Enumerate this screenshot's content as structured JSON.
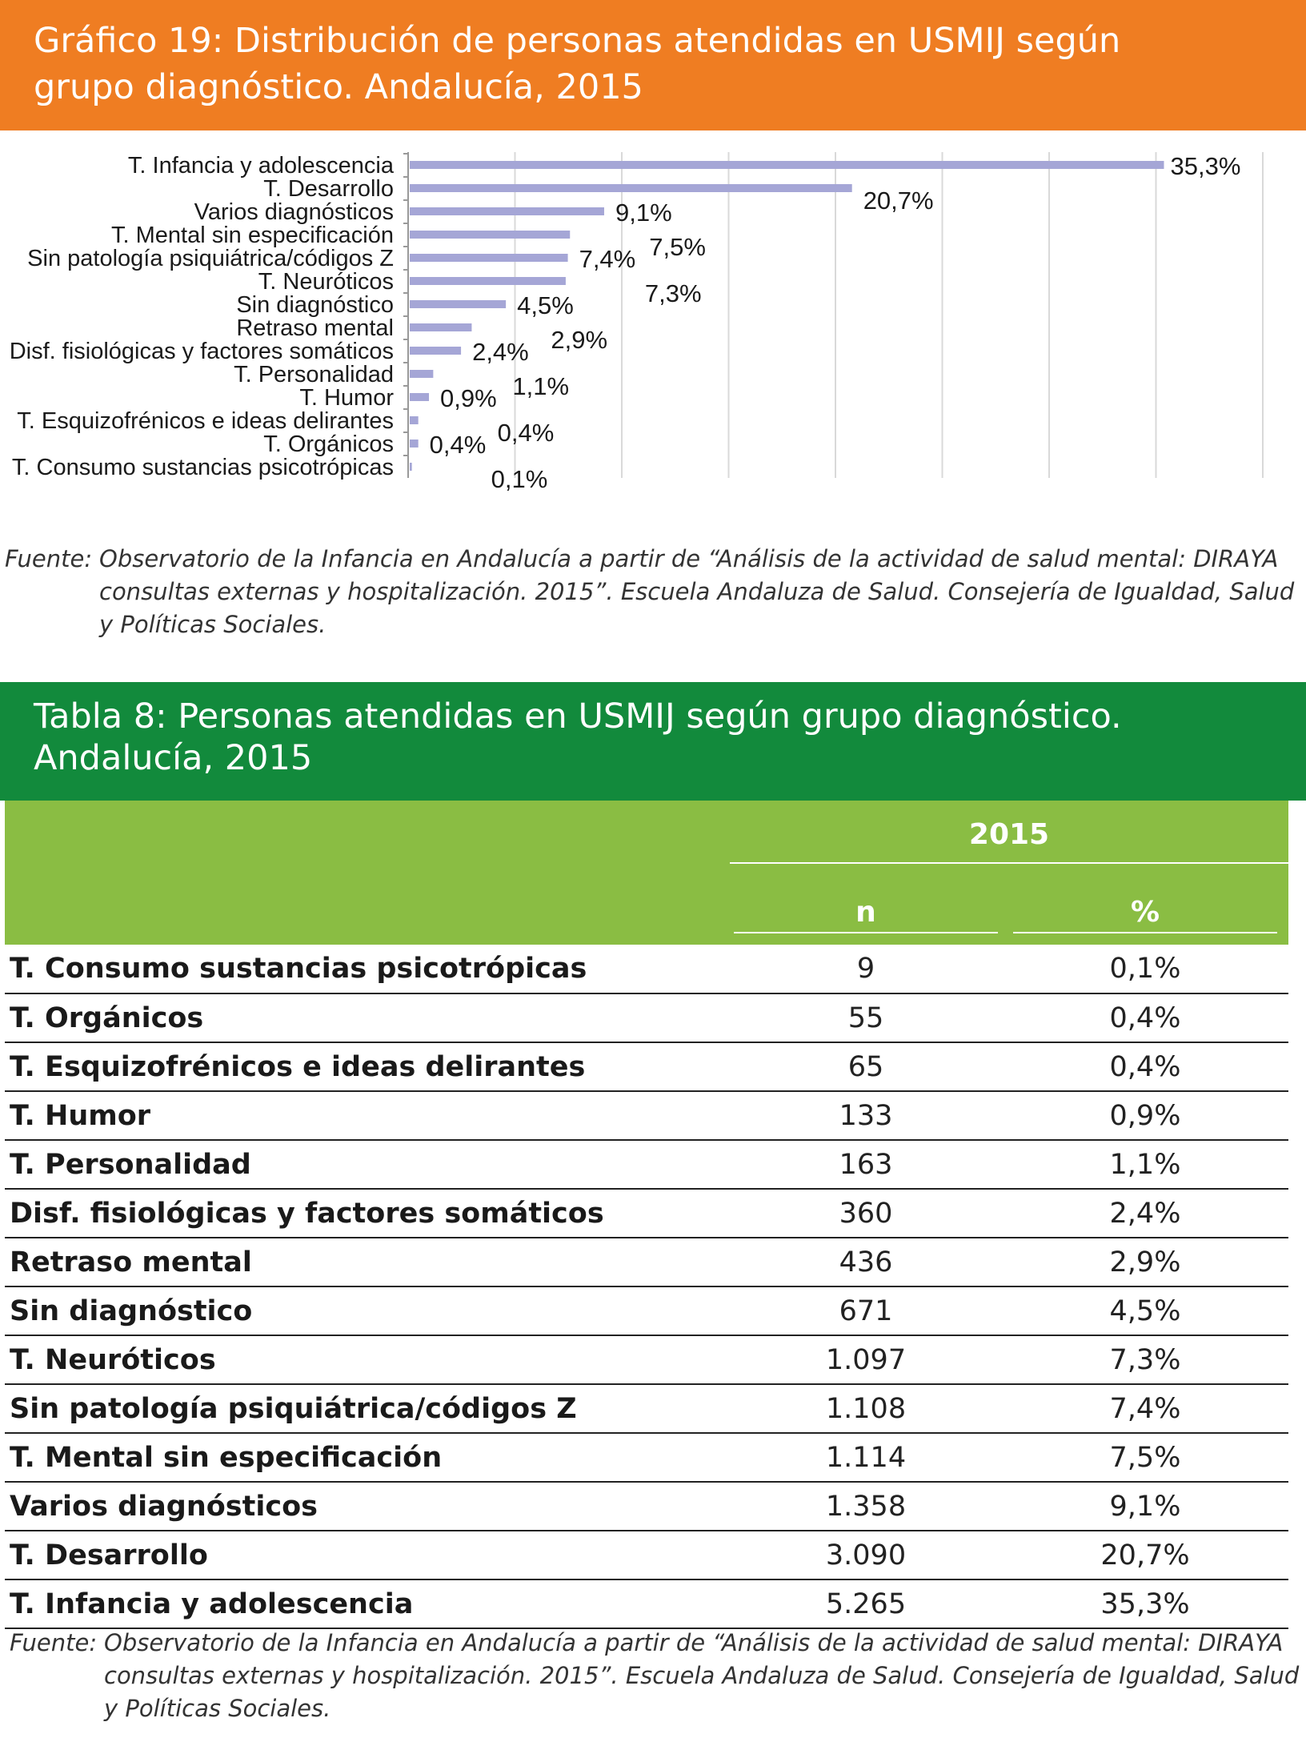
{
  "chart_banner": {
    "title_line1": "Gráfico 19: Distribución de personas atendidas en USMIJ según",
    "title_line2": "grupo diagnóstico. Andalucía, 2015",
    "background": "#ef7d22"
  },
  "chart_data": {
    "type": "bar",
    "orientation": "horizontal",
    "categories": [
      "T. Infancia y adolescencia",
      "T. Desarrollo",
      "Varios diagnósticos",
      "T. Mental sin especificación",
      "Sin patología psiquiátrica/códigos Z",
      "T. Neuróticos",
      "Sin diagnóstico",
      "Retraso mental",
      "Disf. fisiológicas y factores somáticos",
      "T. Personalidad",
      "T. Humor",
      "T. Esquizofrénicos e ideas delirantes",
      "T. Orgánicos",
      "T. Consumo sustancias psicotrópicas"
    ],
    "values": [
      35.3,
      20.7,
      9.1,
      7.5,
      7.4,
      7.3,
      4.5,
      2.9,
      2.4,
      1.1,
      0.9,
      0.4,
      0.4,
      0.1
    ],
    "value_labels": [
      "35,3%",
      "20,7%",
      "9,1%",
      "7,5%",
      "7,4%",
      "7,3%",
      "4,5%",
      "2,9%",
      "2,4%",
      "1,1%",
      "0,9%",
      "0,4%",
      "0,4%",
      "0,1%"
    ],
    "xlim": [
      0,
      40
    ],
    "grid": true,
    "bar_color": "#a5a6d6"
  },
  "chart_source": {
    "label": "Fuente:",
    "text": "Observatorio de la Infancia en Andalucía a partir de “Análisis de la actividad de salud mental: DIRAYA consultas externas y hospitalización. 2015”. Escuela Andaluza de Salud. Consejería de Igualdad, Salud y Políticas Sociales."
  },
  "table_banner": {
    "title_line1": "Tabla 8: Personas atendidas en USMIJ según grupo diagnóstico.",
    "title_line2": "Andalucía, 2015",
    "background": "#128a3c"
  },
  "table": {
    "year_header": "2015",
    "col_n": "n",
    "col_pct": "%",
    "header_color": "#8abd43",
    "rows": [
      {
        "label": "T. Consumo sustancias psicotrópicas",
        "n": "9",
        "pct": "0,1%"
      },
      {
        "label": "T. Orgánicos",
        "n": "55",
        "pct": "0,4%"
      },
      {
        "label": "T. Esquizofrénicos e ideas delirantes",
        "n": "65",
        "pct": "0,4%"
      },
      {
        "label": "T. Humor",
        "n": "133",
        "pct": "0,9%"
      },
      {
        "label": "T. Personalidad",
        "n": "163",
        "pct": "1,1%"
      },
      {
        "label": "Disf. fisiológicas y factores somáticos",
        "n": "360",
        "pct": "2,4%"
      },
      {
        "label": "Retraso mental",
        "n": "436",
        "pct": "2,9%"
      },
      {
        "label": "Sin diagnóstico",
        "n": "671",
        "pct": "4,5%"
      },
      {
        "label": "T. Neuróticos",
        "n": "1.097",
        "pct": "7,3%"
      },
      {
        "label": "Sin patología psiquiátrica/códigos Z",
        "n": "1.108",
        "pct": "7,4%"
      },
      {
        "label": "T. Mental sin especificación",
        "n": "1.114",
        "pct": "7,5%"
      },
      {
        "label": "Varios diagnósticos",
        "n": "1.358",
        "pct": "9,1%"
      },
      {
        "label": "T. Desarrollo",
        "n": "3.090",
        "pct": "20,7%"
      },
      {
        "label": "T. Infancia y adolescencia",
        "n": "5.265",
        "pct": "35,3%"
      }
    ]
  },
  "table_source": {
    "label": "Fuente:",
    "text": "Observatorio de la Infancia en Andalucía a partir de “Análisis de la actividad de salud mental: DIRAYA consultas externas y hospitalización. 2015”. Escuela Andaluza de Salud. Consejería de Igualdad, Salud y Políticas Sociales."
  }
}
